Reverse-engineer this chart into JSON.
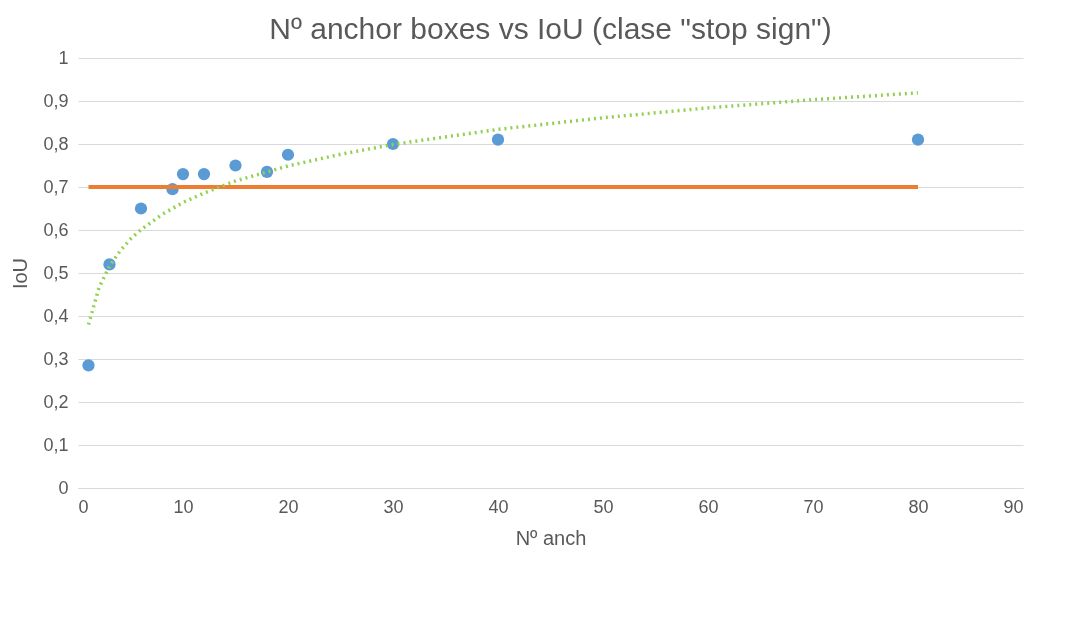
{
  "chart_data": {
    "type": "scatter",
    "title": "Nº anchor boxes vs IoU (clase \"stop sign\")",
    "xlabel": "Nº anch",
    "ylabel": "IoU",
    "series": [
      {
        "color": "#5b9bd5",
        "marker": "circle",
        "x": [
          1,
          3,
          6,
          9,
          10,
          12,
          15,
          18,
          20,
          30,
          40,
          80
        ],
        "values": [
          0.285,
          0.52,
          0.65,
          0.695,
          0.73,
          0.73,
          0.75,
          0.735,
          0.775,
          0.8,
          0.81,
          0.81
        ]
      },
      {
        "type": "line",
        "color": "#ed7d31",
        "line_style": "solid",
        "x": [
          1,
          80
        ],
        "values": [
          0.7,
          0.7
        ]
      },
      {
        "type": "line",
        "color": "#92d050",
        "line_style": "dotted",
        "x": [
          1,
          2,
          3,
          4,
          5,
          6,
          8,
          10,
          12,
          15,
          20,
          25,
          30,
          40,
          50,
          60,
          70,
          80
        ],
        "values": [
          0.38,
          0.466,
          0.516,
          0.551,
          0.579,
          0.601,
          0.636,
          0.664,
          0.686,
          0.714,
          0.749,
          0.776,
          0.799,
          0.834,
          0.861,
          0.884,
          0.903,
          0.919
        ]
      }
    ],
    "xlim": [
      0,
      90
    ],
    "xticks": [
      0,
      10,
      20,
      30,
      40,
      50,
      60,
      70,
      80,
      90
    ],
    "ylim": [
      0,
      1
    ],
    "yticks": [
      0,
      {
        "value": 0.1,
        "label": "0,1"
      },
      {
        "value": 0.2,
        "label": "0,2"
      },
      {
        "value": 0.3,
        "label": "0,3"
      },
      {
        "value": 0.4,
        "label": "0,4"
      },
      {
        "value": 0.5,
        "label": "0,5"
      },
      {
        "value": 0.6,
        "label": "0,6"
      },
      {
        "value": 0.7,
        "label": "0,7"
      },
      {
        "value": 0.8,
        "label": "0,8"
      },
      {
        "value": 0.9,
        "label": "0,9"
      },
      1
    ],
    "grid": "y"
  }
}
